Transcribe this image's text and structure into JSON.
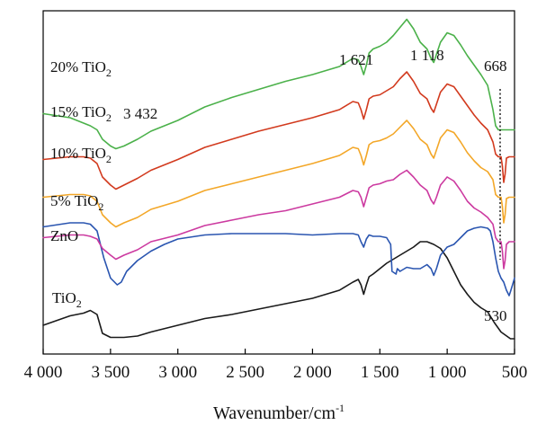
{
  "chart_data": {
    "type": "line",
    "xlabel_main": "Wavenumber/cm",
    "xlabel_sup": "-1",
    "xlim": [
      4000,
      500
    ],
    "x_ticks": [
      4000,
      3500,
      3000,
      2500,
      2000,
      1500,
      1000,
      500
    ],
    "x_tick_labels": [
      "4 000",
      "3 500",
      "3 000",
      "2 500",
      "2 000",
      "1 500",
      "1 000",
      "500"
    ],
    "y_ticks_shown": false,
    "grid": false,
    "legend": "none",
    "series": [
      {
        "key": "tio2",
        "label": "TiO",
        "label_sub": "2",
        "color": "#1a1a1a",
        "x": [
          4000,
          3800,
          3700,
          3650,
          3600,
          3560,
          3500,
          3450,
          3400,
          3300,
          3200,
          3000,
          2800,
          2600,
          2400,
          2200,
          2000,
          1800,
          1700,
          1660,
          1640,
          1620,
          1600,
          1580,
          1550,
          1450,
          1350,
          1250,
          1200,
          1150,
          1100,
          1050,
          1000,
          950,
          900,
          850,
          800,
          750,
          700,
          650,
          600,
          530,
          500
        ],
        "y": [
          0.1,
          0.17,
          0.19,
          0.21,
          0.18,
          0.04,
          0.01,
          0.01,
          0.01,
          0.02,
          0.05,
          0.1,
          0.15,
          0.18,
          0.22,
          0.26,
          0.3,
          0.36,
          0.42,
          0.44,
          0.4,
          0.33,
          0.4,
          0.46,
          0.48,
          0.56,
          0.62,
          0.68,
          0.72,
          0.72,
          0.7,
          0.67,
          0.6,
          0.5,
          0.4,
          0.33,
          0.27,
          0.23,
          0.2,
          0.12,
          0.05,
          0.0,
          0.0
        ]
      },
      {
        "key": "zno",
        "label": "ZnO",
        "label_sub": "",
        "color": "#2a55b0",
        "x": [
          4000,
          3800,
          3700,
          3650,
          3600,
          3550,
          3500,
          3450,
          3420,
          3380,
          3300,
          3200,
          3100,
          3000,
          2800,
          2600,
          2400,
          2200,
          2000,
          1800,
          1700,
          1660,
          1640,
          1620,
          1600,
          1580,
          1550,
          1500,
          1450,
          1420,
          1410,
          1380,
          1370,
          1350,
          1300,
          1250,
          1200,
          1150,
          1120,
          1100,
          1080,
          1050,
          1000,
          950,
          900,
          850,
          800,
          750,
          700,
          680,
          660,
          640,
          620,
          600,
          580,
          560,
          540,
          530,
          515,
          500
        ],
        "y": [
          0.83,
          0.86,
          0.86,
          0.85,
          0.8,
          0.6,
          0.45,
          0.4,
          0.42,
          0.5,
          0.58,
          0.65,
          0.7,
          0.74,
          0.77,
          0.78,
          0.78,
          0.78,
          0.77,
          0.78,
          0.78,
          0.77,
          0.72,
          0.68,
          0.74,
          0.77,
          0.76,
          0.76,
          0.75,
          0.7,
          0.5,
          0.48,
          0.52,
          0.5,
          0.53,
          0.52,
          0.52,
          0.55,
          0.52,
          0.47,
          0.52,
          0.62,
          0.68,
          0.7,
          0.75,
          0.8,
          0.82,
          0.83,
          0.82,
          0.8,
          0.72,
          0.6,
          0.5,
          0.45,
          0.42,
          0.36,
          0.32,
          0.35,
          0.4,
          0.45
        ]
      },
      {
        "key": "tio2_5",
        "label": "5% TiO",
        "label_sub": "2",
        "color": "#cc3aa0",
        "x": [
          4000,
          3800,
          3700,
          3650,
          3600,
          3560,
          3500,
          3460,
          3400,
          3300,
          3200,
          3000,
          2800,
          2600,
          2400,
          2200,
          2000,
          1800,
          1700,
          1660,
          1640,
          1620,
          1600,
          1580,
          1550,
          1500,
          1450,
          1400,
          1350,
          1300,
          1250,
          1200,
          1150,
          1120,
          1100,
          1080,
          1050,
          1000,
          950,
          900,
          850,
          800,
          750,
          700,
          660,
          640,
          620,
          600,
          590,
          580,
          570,
          560,
          540,
          500
        ],
        "y": [
          0.75,
          0.77,
          0.77,
          0.76,
          0.74,
          0.67,
          0.62,
          0.59,
          0.62,
          0.66,
          0.72,
          0.77,
          0.84,
          0.88,
          0.92,
          0.95,
          1.0,
          1.05,
          1.1,
          1.09,
          1.05,
          0.98,
          1.05,
          1.12,
          1.14,
          1.15,
          1.17,
          1.18,
          1.22,
          1.25,
          1.2,
          1.14,
          1.1,
          1.03,
          1.0,
          1.05,
          1.14,
          1.2,
          1.17,
          1.1,
          1.02,
          0.97,
          0.94,
          0.9,
          0.85,
          0.75,
          0.72,
          0.72,
          0.65,
          0.52,
          0.58,
          0.7,
          0.72,
          0.72
        ]
      },
      {
        "key": "tio2_10",
        "label": "10% TiO",
        "label_sub": "2",
        "color": "#f3a728",
        "x": [
          4000,
          3800,
          3700,
          3650,
          3600,
          3560,
          3500,
          3460,
          3400,
          3300,
          3200,
          3000,
          2800,
          2600,
          2400,
          2200,
          2000,
          1800,
          1700,
          1660,
          1640,
          1620,
          1600,
          1580,
          1550,
          1500,
          1450,
          1400,
          1350,
          1300,
          1250,
          1200,
          1150,
          1120,
          1100,
          1080,
          1050,
          1000,
          950,
          900,
          850,
          800,
          750,
          700,
          660,
          640,
          620,
          600,
          590,
          580,
          570,
          560,
          540,
          500
        ],
        "y": [
          1.05,
          1.07,
          1.07,
          1.06,
          1.02,
          0.92,
          0.86,
          0.83,
          0.86,
          0.9,
          0.96,
          1.02,
          1.1,
          1.15,
          1.2,
          1.25,
          1.3,
          1.36,
          1.42,
          1.41,
          1.36,
          1.29,
          1.36,
          1.44,
          1.46,
          1.47,
          1.49,
          1.52,
          1.57,
          1.62,
          1.56,
          1.48,
          1.44,
          1.37,
          1.34,
          1.4,
          1.49,
          1.55,
          1.53,
          1.46,
          1.38,
          1.32,
          1.27,
          1.24,
          1.18,
          1.07,
          1.05,
          1.05,
          0.98,
          0.86,
          0.92,
          1.04,
          1.05,
          1.05
        ]
      },
      {
        "key": "tio2_15",
        "label": "15% TiO",
        "label_sub": "2",
        "color": "#d23a1e",
        "x": [
          4000,
          3800,
          3700,
          3650,
          3600,
          3560,
          3500,
          3460,
          3400,
          3300,
          3200,
          3000,
          2800,
          2600,
          2400,
          2200,
          2000,
          1800,
          1700,
          1660,
          1640,
          1620,
          1600,
          1580,
          1550,
          1500,
          1450,
          1400,
          1350,
          1300,
          1250,
          1200,
          1150,
          1120,
          1100,
          1080,
          1050,
          1000,
          950,
          900,
          850,
          800,
          750,
          700,
          660,
          640,
          620,
          600,
          590,
          580,
          570,
          560,
          540,
          500
        ],
        "y": [
          1.33,
          1.35,
          1.35,
          1.34,
          1.3,
          1.2,
          1.14,
          1.11,
          1.14,
          1.19,
          1.25,
          1.33,
          1.42,
          1.48,
          1.54,
          1.59,
          1.64,
          1.7,
          1.76,
          1.75,
          1.7,
          1.63,
          1.7,
          1.78,
          1.8,
          1.81,
          1.84,
          1.87,
          1.93,
          1.98,
          1.91,
          1.82,
          1.78,
          1.71,
          1.68,
          1.74,
          1.83,
          1.89,
          1.87,
          1.8,
          1.73,
          1.66,
          1.6,
          1.55,
          1.46,
          1.37,
          1.35,
          1.35,
          1.28,
          1.16,
          1.22,
          1.34,
          1.35,
          1.35
        ]
      },
      {
        "key": "tio2_20",
        "label": "20% TiO",
        "label_sub": "2",
        "color": "#4bb14a",
        "x": [
          4000,
          3800,
          3700,
          3650,
          3600,
          3560,
          3500,
          3460,
          3400,
          3300,
          3200,
          3000,
          2800,
          2600,
          2400,
          2200,
          2000,
          1800,
          1700,
          1660,
          1640,
          1620,
          1600,
          1580,
          1550,
          1500,
          1450,
          1400,
          1350,
          1300,
          1250,
          1200,
          1150,
          1120,
          1100,
          1080,
          1050,
          1000,
          950,
          900,
          850,
          800,
          750,
          700,
          660,
          640,
          620,
          600,
          590,
          580,
          570,
          560,
          540,
          500
        ],
        "y": [
          1.67,
          1.64,
          1.6,
          1.58,
          1.55,
          1.48,
          1.43,
          1.41,
          1.43,
          1.48,
          1.54,
          1.62,
          1.72,
          1.79,
          1.85,
          1.91,
          1.96,
          2.02,
          2.08,
          2.07,
          2.02,
          1.96,
          2.03,
          2.12,
          2.15,
          2.17,
          2.2,
          2.25,
          2.31,
          2.37,
          2.3,
          2.2,
          2.15,
          2.08,
          2.05,
          2.11,
          2.2,
          2.27,
          2.25,
          2.18,
          2.1,
          2.03,
          1.96,
          1.88,
          1.7,
          1.58,
          1.55,
          1.55,
          1.55,
          1.55,
          1.55,
          1.55,
          1.55,
          1.55
        ]
      }
    ],
    "annotations": {
      "p3432": "3 432",
      "p1621": "1 621",
      "p1118": "1 118",
      "p668": "668",
      "p530": "530"
    }
  }
}
